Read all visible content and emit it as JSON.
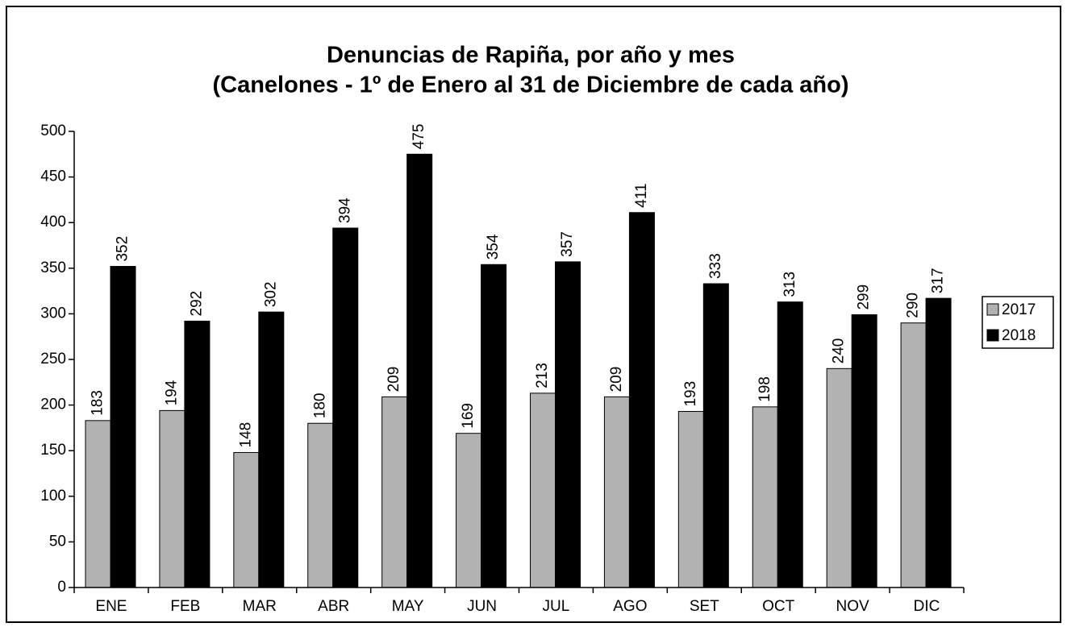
{
  "chart_data": {
    "type": "bar",
    "title": "Denuncias de Rapiña, por año y mes",
    "subtitle": "(Canelones - 1º de Enero al 31 de Diciembre de cada año)",
    "categories": [
      "ENE",
      "FEB",
      "MAR",
      "ABR",
      "MAY",
      "JUN",
      "JUL",
      "AGO",
      "SET",
      "OCT",
      "NOV",
      "DIC"
    ],
    "series": [
      {
        "name": "2017",
        "color": "#b2b2b2",
        "values": [
          183,
          194,
          148,
          180,
          209,
          169,
          213,
          209,
          193,
          198,
          240,
          290
        ]
      },
      {
        "name": "2018",
        "color": "#000000",
        "values": [
          352,
          292,
          302,
          394,
          475,
          354,
          357,
          411,
          333,
          313,
          299,
          317
        ]
      }
    ],
    "ylim": [
      0,
      500
    ],
    "yticks": [
      0,
      50,
      100,
      150,
      200,
      250,
      300,
      350,
      400,
      450,
      500
    ],
    "grid": false,
    "legend": "right"
  }
}
